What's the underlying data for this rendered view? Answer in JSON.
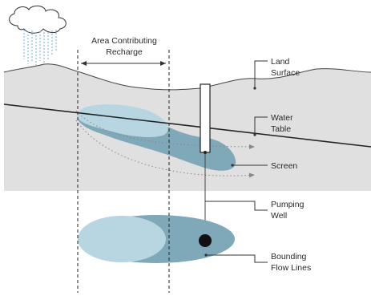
{
  "labels": {
    "area_line1": "Area Contributing",
    "area_line2": "Recharge",
    "land_line1": "Land",
    "land_line2": "Surface",
    "water_line1": "Water",
    "water_line2": "Table",
    "screen": "Screen",
    "pumping_line1": "Pumping",
    "pumping_line2": "Well",
    "bounding_line1": "Bounding",
    "bounding_line2": "Flow Lines"
  },
  "colors": {
    "ground": "#e0e0e0",
    "plume_light": "#b7d6e2",
    "plume_dark": "#7fa8b9",
    "line": "#222222",
    "rain": "#7fb6dd",
    "flow_line": "#888888"
  }
}
